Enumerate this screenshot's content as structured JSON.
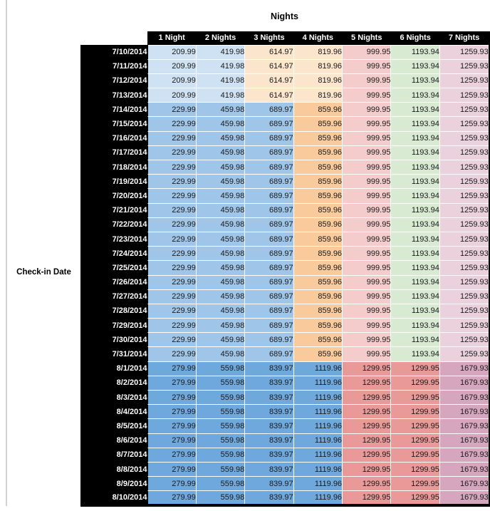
{
  "table": {
    "title": "Nights",
    "row_axis_label": "Check-in Date",
    "columns": [
      "1 Night",
      "2 Nights",
      "3 Nights",
      "4 Nights",
      "5 Nights",
      "6 Nights",
      "7 Nights"
    ],
    "palette": {
      "blue_dark": "#6fa8dc",
      "blue_mid": "#9fc5e8",
      "blue_light": "#cfe2f3",
      "orange_mid": "#f9cb9c",
      "orange_light": "#fce5cd",
      "red_mid": "#ea9999",
      "red_light": "#f4cccc",
      "green_light": "#d9ead3",
      "magenta_mid": "#d5a6bd",
      "magenta_light": "#ead1dc",
      "header_bg": "#000000",
      "header_text": "#ffffff"
    },
    "bands": {
      "early_july": {
        "values": [
          "209.99",
          "419.98",
          "614.97",
          "819.96",
          "999.95",
          "1193.94",
          "1259.93"
        ],
        "colors": [
          "blue_light",
          "blue_light",
          "orange_light",
          "orange_light",
          "red_light",
          "green_light",
          "magenta_light"
        ]
      },
      "mid_july": {
        "values": [
          "229.99",
          "459.98",
          "689.97",
          "859.96",
          "999.95",
          "1193.94",
          "1259.93"
        ],
        "colors": [
          "blue_mid",
          "blue_mid",
          "blue_mid",
          "orange_mid",
          "red_light",
          "green_light",
          "magenta_light"
        ]
      },
      "august": {
        "values": [
          "279.99",
          "559.98",
          "839.97",
          "1119.96",
          "1299.95",
          "1299.95",
          "1679.93"
        ],
        "colors": [
          "blue_dark",
          "blue_dark",
          "blue_dark",
          "blue_dark",
          "red_mid",
          "red_mid",
          "magenta_mid"
        ]
      }
    },
    "rows": [
      {
        "date": "7/10/2014",
        "band": "early_july"
      },
      {
        "date": "7/11/2014",
        "band": "early_july"
      },
      {
        "date": "7/12/2014",
        "band": "early_july"
      },
      {
        "date": "7/13/2014",
        "band": "early_july"
      },
      {
        "date": "7/14/2014",
        "band": "mid_july"
      },
      {
        "date": "7/15/2014",
        "band": "mid_july"
      },
      {
        "date": "7/16/2014",
        "band": "mid_july"
      },
      {
        "date": "7/17/2014",
        "band": "mid_july"
      },
      {
        "date": "7/18/2014",
        "band": "mid_july"
      },
      {
        "date": "7/19/2014",
        "band": "mid_july"
      },
      {
        "date": "7/20/2014",
        "band": "mid_july"
      },
      {
        "date": "7/21/2014",
        "band": "mid_july"
      },
      {
        "date": "7/22/2014",
        "band": "mid_july"
      },
      {
        "date": "7/23/2014",
        "band": "mid_july"
      },
      {
        "date": "7/24/2014",
        "band": "mid_july"
      },
      {
        "date": "7/25/2014",
        "band": "mid_july"
      },
      {
        "date": "7/26/2014",
        "band": "mid_july"
      },
      {
        "date": "7/27/2014",
        "band": "mid_july"
      },
      {
        "date": "7/28/2014",
        "band": "mid_july"
      },
      {
        "date": "7/29/2014",
        "band": "mid_july"
      },
      {
        "date": "7/30/2014",
        "band": "mid_july"
      },
      {
        "date": "7/31/2014",
        "band": "mid_july"
      },
      {
        "date": "8/1/2014",
        "band": "august"
      },
      {
        "date": "8/2/2014",
        "band": "august"
      },
      {
        "date": "8/3/2014",
        "band": "august"
      },
      {
        "date": "8/4/2014",
        "band": "august"
      },
      {
        "date": "8/5/2014",
        "band": "august"
      },
      {
        "date": "8/6/2014",
        "band": "august"
      },
      {
        "date": "8/7/2014",
        "band": "august"
      },
      {
        "date": "8/8/2014",
        "band": "august"
      },
      {
        "date": "8/9/2014",
        "band": "august"
      },
      {
        "date": "8/10/2014",
        "band": "august"
      }
    ]
  }
}
